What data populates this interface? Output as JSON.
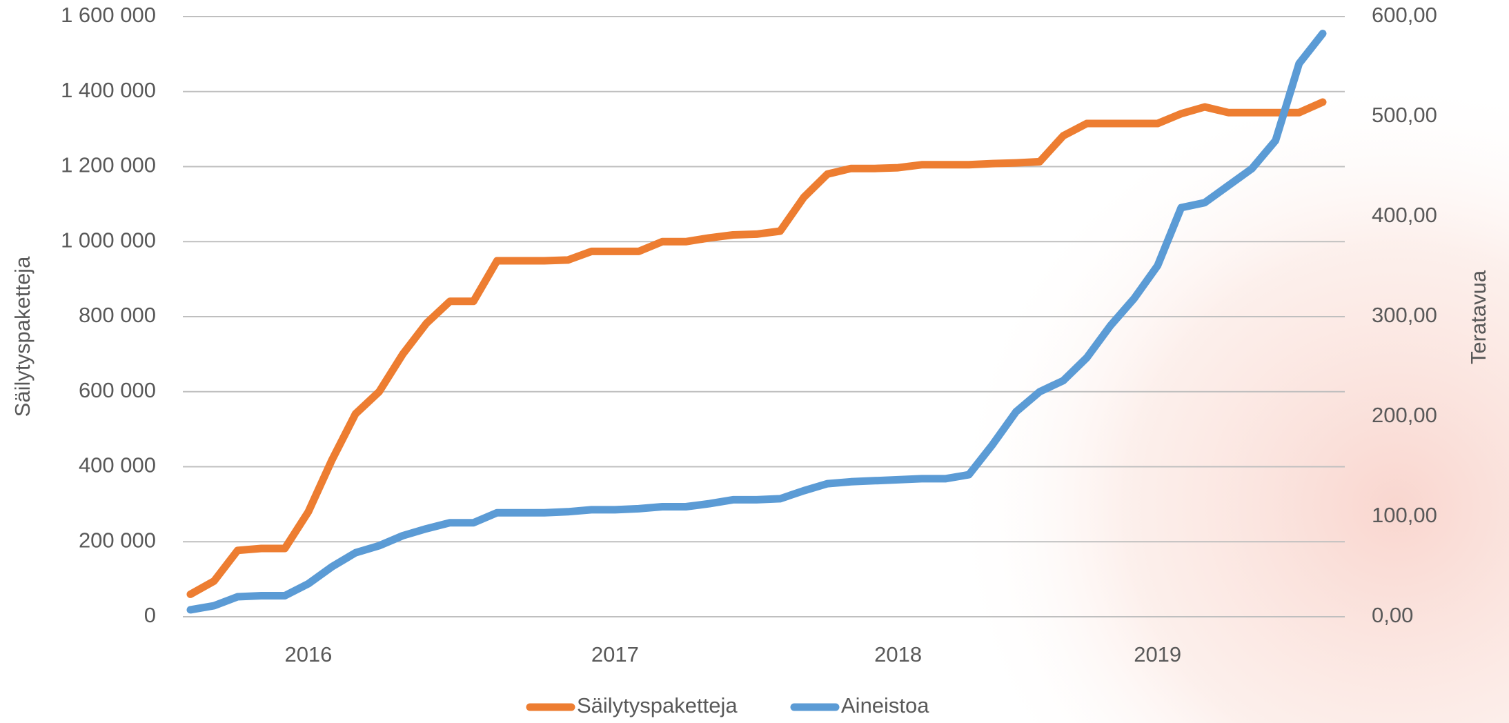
{
  "chart_data": {
    "type": "line",
    "y_label": "Säilytyspaketteja",
    "y2_label": "Teratavua",
    "categories": [
      null,
      null,
      null,
      null,
      null,
      "2016",
      null,
      null,
      null,
      null,
      null,
      null,
      null,
      null,
      null,
      null,
      null,
      null,
      "2017",
      null,
      null,
      null,
      null,
      null,
      null,
      null,
      null,
      null,
      null,
      null,
      "2018",
      null,
      null,
      null,
      null,
      null,
      null,
      null,
      null,
      null,
      null,
      "2019",
      null,
      null,
      null,
      null,
      null,
      null,
      null
    ],
    "series": [
      {
        "name": "Säilytyspaketteja",
        "color": "#ED7D31",
        "axis": "y",
        "values": [
          60000,
          95000,
          177000,
          182000,
          182000,
          280000,
          418000,
          541000,
          600000,
          700000,
          782000,
          841000,
          841000,
          949000,
          949000,
          949000,
          951000,
          974000,
          974000,
          974000,
          1000000,
          1000000,
          1010000,
          1018000,
          1020000,
          1028000,
          1118000,
          1180000,
          1195000,
          1195000,
          1197000,
          1205000,
          1205000,
          1205000,
          1208000,
          1210000,
          1213000,
          1282000,
          1315000,
          1315000,
          1315000,
          1315000,
          1341000,
          1359000,
          1344000,
          1344000,
          1344000,
          1344000,
          1372000
        ]
      },
      {
        "name": "Aineistoa",
        "color": "#5B9BD5",
        "axis": "y2",
        "values": [
          7,
          11,
          20,
          21,
          21,
          33,
          50,
          64,
          71,
          81,
          88,
          94,
          94,
          104,
          104,
          104,
          105,
          107,
          107,
          108,
          110,
          110,
          113,
          117,
          117,
          118,
          126,
          133,
          135,
          136,
          137,
          138,
          138,
          142,
          172,
          205,
          225,
          236,
          259,
          291,
          318,
          351,
          409,
          414,
          431,
          448,
          476,
          553,
          583
        ]
      }
    ],
    "ylim": [
      0,
      1600000
    ],
    "yticks": [
      {
        "value": 0,
        "label": "0"
      },
      {
        "value": 200000,
        "label": "200 000"
      },
      {
        "value": 400000,
        "label": "400 000"
      },
      {
        "value": 600000,
        "label": "600 000"
      },
      {
        "value": 800000,
        "label": "800 000"
      },
      {
        "value": 1000000,
        "label": "1 000 000"
      },
      {
        "value": 1200000,
        "label": "1 200 000"
      },
      {
        "value": 1400000,
        "label": "1 400 000"
      },
      {
        "value": 1600000,
        "label": "1 600 000"
      }
    ],
    "y2lim": [
      0,
      600
    ],
    "y2ticks": [
      {
        "value": 0,
        "label": "0,00"
      },
      {
        "value": 100,
        "label": "100,00"
      },
      {
        "value": 200,
        "label": "200,00"
      },
      {
        "value": 300,
        "label": "300,00"
      },
      {
        "value": 400,
        "label": "400,00"
      },
      {
        "value": 500,
        "label": "500,00"
      },
      {
        "value": 600,
        "label": "600,00"
      }
    ],
    "grid": true,
    "legend": "bottom"
  }
}
